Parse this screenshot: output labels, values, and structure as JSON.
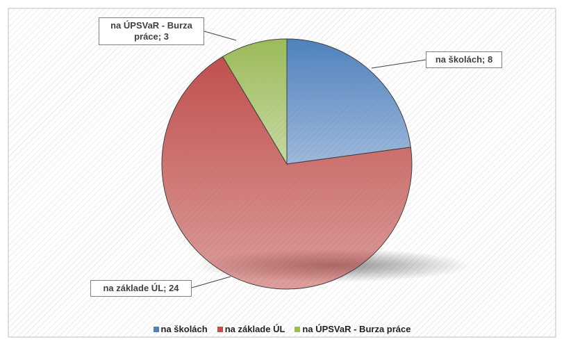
{
  "chart_data": {
    "type": "pie",
    "categories": [
      "na školách",
      "na základe ÚL",
      "na ÚPSVaR - Burza práce"
    ],
    "values": [
      8,
      24,
      3
    ],
    "value_labels": [
      "na školách; 8",
      "na základe ÚL; 24",
      "na ÚPSVaR - Burza práce; 3"
    ],
    "colors": [
      "#4f81bd",
      "#c0504d",
      "#9bbb59"
    ],
    "legend": "bottom"
  }
}
